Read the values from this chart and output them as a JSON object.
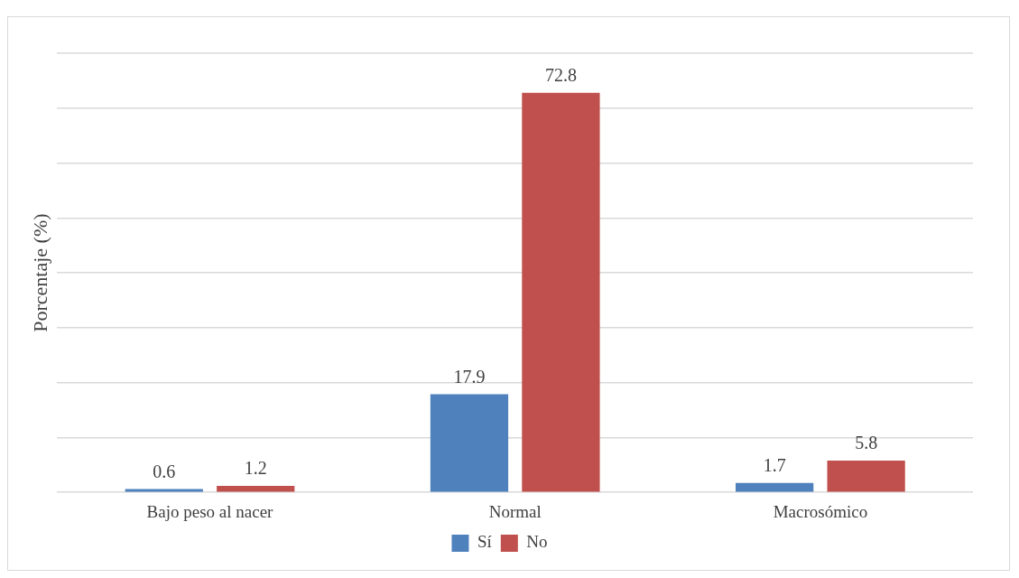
{
  "chart_data": {
    "type": "bar",
    "ylabel": "Porcentaje (%)",
    "categories": [
      "Bajo peso al nacer",
      "Normal",
      "Macrosómico"
    ],
    "series": [
      {
        "name": "Sí",
        "color": "#4f81bd",
        "values": [
          0.6,
          17.9,
          1.7
        ]
      },
      {
        "name": "No",
        "color": "#c0504d",
        "values": [
          1.2,
          72.8,
          5.8
        ]
      }
    ],
    "ylim": [
      0,
      80
    ],
    "yticks": [
      {
        "value": 0,
        "label": null
      },
      {
        "value": 10,
        "label": null
      },
      {
        "value": 20,
        "label": null
      },
      {
        "value": 30,
        "label": null
      },
      {
        "value": 40,
        "label": null
      },
      {
        "value": 50,
        "label": null
      },
      {
        "value": 60,
        "label": null
      },
      {
        "value": 70,
        "label": null
      },
      {
        "value": 80,
        "label": null
      }
    ],
    "tick_labels": "x",
    "grid": "y",
    "legend": "bottom",
    "data_labels": true
  }
}
